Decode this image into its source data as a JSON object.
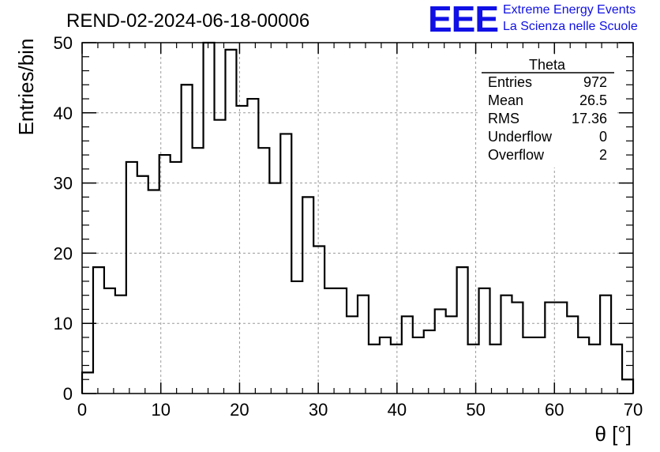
{
  "header": {
    "run_title": "REND-02-2024-06-18-00006",
    "brand_logo": "EEE",
    "brand_line1": "Extreme Energy Events",
    "brand_line2": "La Scienza nelle Scuole"
  },
  "stats_box": {
    "title": "Theta",
    "rows": [
      {
        "label": "Entries",
        "value": "972"
      },
      {
        "label": "Mean",
        "value": "26.5"
      },
      {
        "label": "RMS",
        "value": "17.36"
      },
      {
        "label": "Underflow",
        "value": "0"
      },
      {
        "label": "Overflow",
        "value": "2"
      }
    ]
  },
  "chart_data": {
    "type": "bar",
    "style": "step-histogram",
    "title": "REND-02-2024-06-18-00006",
    "xlabel": "θ [°]",
    "ylabel": "Entries/bin",
    "xlim": [
      0,
      70
    ],
    "ylim": [
      0,
      50
    ],
    "grid": true,
    "bin_width": 1.4,
    "bin_edges_start": 0,
    "values": [
      3,
      18,
      15,
      14,
      33,
      31,
      29,
      34,
      33,
      44,
      35,
      50,
      39,
      49,
      41,
      42,
      35,
      30,
      37,
      16,
      28,
      21,
      15,
      15,
      11,
      14,
      7,
      8,
      7,
      11,
      8,
      9,
      12,
      11,
      18,
      7,
      15,
      7,
      14,
      13,
      8,
      8,
      13,
      13,
      11,
      8,
      7,
      14,
      7,
      2
    ],
    "x_ticks": [
      "0",
      "10",
      "20",
      "30",
      "40",
      "50",
      "60",
      "70"
    ],
    "y_ticks": [
      "0",
      "10",
      "20",
      "30",
      "40",
      "50"
    ],
    "line_color": "#000000",
    "grid_color": "#9a9a9a"
  }
}
